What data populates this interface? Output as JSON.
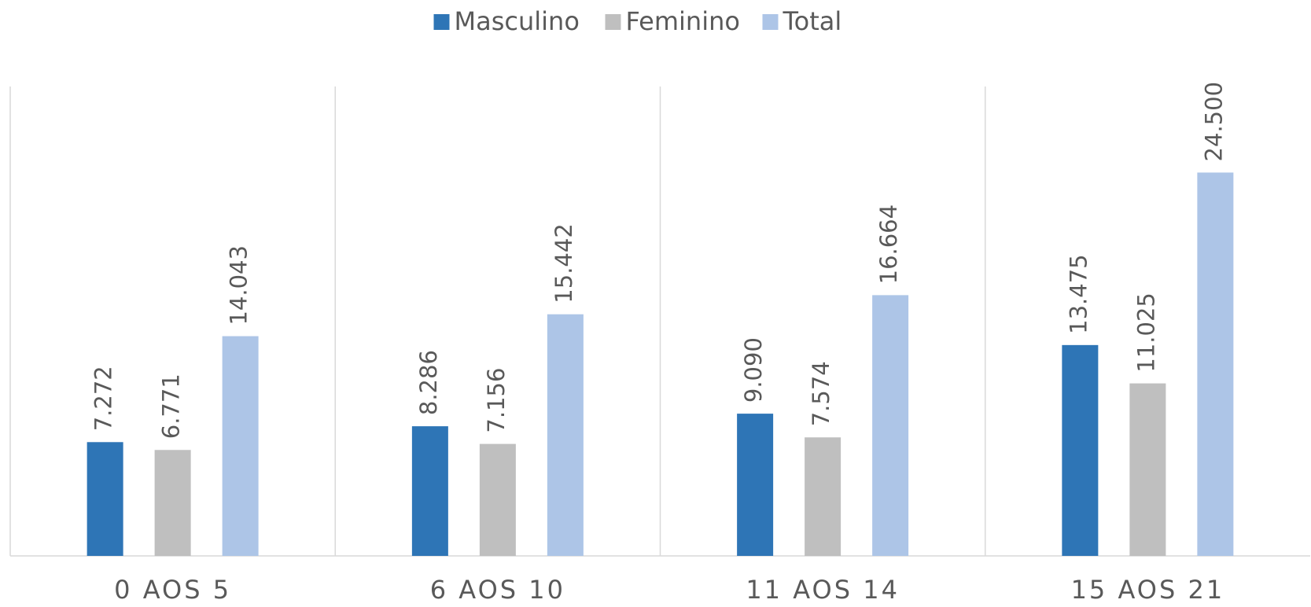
{
  "chart_data": {
    "type": "bar",
    "categories": [
      "0 AOS 5",
      "6 AOS 10",
      "11 AOS 14",
      "15 AOS 21"
    ],
    "series": [
      {
        "name": "Masculino",
        "color": "#2e75b6",
        "values": [
          7272,
          8286,
          9090,
          13475
        ],
        "value_labels": [
          "7.272",
          "8.286",
          "9.090",
          "13.475"
        ]
      },
      {
        "name": "Feminino",
        "color": "#bfbfbf",
        "values": [
          6771,
          7156,
          7574,
          11025
        ],
        "value_labels": [
          "6.771",
          "7.156",
          "7.574",
          "11.025"
        ]
      },
      {
        "name": "Total",
        "color": "#adc5e7",
        "values": [
          14043,
          15442,
          16664,
          24500
        ],
        "value_labels": [
          "14.043",
          "15.442",
          "16.664",
          "24.500"
        ]
      }
    ],
    "ylim": [
      0,
      30000
    ],
    "legend": "top"
  }
}
